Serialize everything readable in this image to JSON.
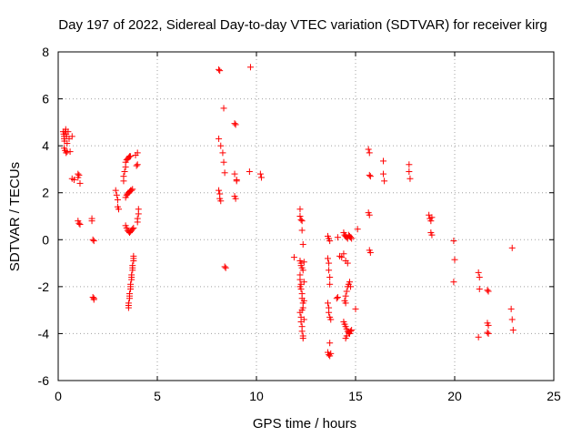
{
  "chart_data": {
    "type": "scatter",
    "title": "Day 197 of 2022, Sidereal Day-to-day VTEC variation (SDTVAR) for receiver kirg",
    "xlabel": "GPS time / hours",
    "ylabel": "SDTVAR / TECUs",
    "xlim": [
      0,
      25
    ],
    "ylim": [
      -6,
      8
    ],
    "xticks": [
      "0",
      "5",
      "10",
      "15",
      "20",
      "25"
    ],
    "yticks": [
      "-6",
      "-4",
      "-2",
      "0",
      "2",
      "4",
      "6",
      "8"
    ],
    "grid": true,
    "marker": "plus",
    "color": "#ff0000",
    "series": [
      {
        "name": "SDTVAR",
        "points": [
          [
            0.25,
            4.6
          ],
          [
            0.28,
            4.5
          ],
          [
            0.3,
            4.4
          ],
          [
            0.3,
            4.3
          ],
          [
            0.32,
            4.2
          ],
          [
            0.35,
            4.6
          ],
          [
            0.38,
            4.7
          ],
          [
            0.4,
            4.5
          ],
          [
            0.42,
            4.4
          ],
          [
            0.45,
            4.1
          ],
          [
            0.3,
            3.9
          ],
          [
            0.35,
            3.8
          ],
          [
            0.4,
            3.7
          ],
          [
            0.45,
            3.75
          ],
          [
            0.5,
            4.6
          ],
          [
            0.55,
            4.3
          ],
          [
            0.6,
            3.75
          ],
          [
            0.7,
            4.4
          ],
          [
            0.7,
            2.6
          ],
          [
            0.8,
            2.55
          ],
          [
            1.0,
            2.8
          ],
          [
            1.0,
            2.65
          ],
          [
            1.05,
            2.75
          ],
          [
            1.1,
            2.4
          ],
          [
            1.0,
            0.8
          ],
          [
            1.05,
            0.7
          ],
          [
            1.1,
            0.65
          ],
          [
            1.7,
            0.9
          ],
          [
            1.7,
            0.8
          ],
          [
            1.75,
            0.0
          ],
          [
            1.8,
            -0.05
          ],
          [
            1.75,
            -2.45
          ],
          [
            1.8,
            -2.5
          ],
          [
            1.8,
            -2.55
          ],
          [
            2.9,
            2.1
          ],
          [
            2.95,
            1.9
          ],
          [
            3.0,
            1.7
          ],
          [
            3.0,
            1.4
          ],
          [
            3.05,
            1.3
          ],
          [
            3.3,
            2.5
          ],
          [
            3.3,
            2.7
          ],
          [
            3.35,
            2.9
          ],
          [
            3.4,
            3.1
          ],
          [
            3.4,
            3.3
          ],
          [
            3.45,
            3.4
          ],
          [
            3.5,
            3.45
          ],
          [
            3.55,
            3.5
          ],
          [
            3.6,
            3.55
          ],
          [
            3.65,
            3.55
          ],
          [
            3.9,
            3.6
          ],
          [
            4.0,
            3.7
          ],
          [
            4.0,
            3.2
          ],
          [
            3.95,
            3.15
          ],
          [
            3.4,
            1.8
          ],
          [
            3.45,
            1.9
          ],
          [
            3.5,
            1.95
          ],
          [
            3.55,
            2.0
          ],
          [
            3.6,
            2.05
          ],
          [
            3.65,
            2.1
          ],
          [
            3.7,
            2.1
          ],
          [
            3.75,
            2.15
          ],
          [
            3.4,
            0.6
          ],
          [
            3.45,
            0.5
          ],
          [
            3.5,
            0.4
          ],
          [
            3.55,
            0.35
          ],
          [
            3.6,
            0.3
          ],
          [
            3.65,
            0.35
          ],
          [
            3.7,
            0.4
          ],
          [
            3.75,
            0.45
          ],
          [
            3.8,
            0.5
          ],
          [
            4.0,
            0.9
          ],
          [
            4.05,
            1.1
          ],
          [
            4.05,
            1.3
          ],
          [
            4.0,
            0.75
          ],
          [
            3.55,
            -2.9
          ],
          [
            3.55,
            -2.7
          ],
          [
            3.6,
            -2.5
          ],
          [
            3.6,
            -2.3
          ],
          [
            3.65,
            -2.1
          ],
          [
            3.65,
            -1.9
          ],
          [
            3.7,
            -1.7
          ],
          [
            3.7,
            -1.5
          ],
          [
            3.75,
            -1.3
          ],
          [
            3.75,
            -1.1
          ],
          [
            3.8,
            -0.9
          ],
          [
            3.8,
            -0.7
          ],
          [
            3.55,
            -2.8
          ],
          [
            3.6,
            -2.4
          ],
          [
            3.65,
            -2.0
          ],
          [
            3.7,
            -1.6
          ],
          [
            3.75,
            -1.2
          ],
          [
            3.8,
            -0.8
          ],
          [
            8.1,
            7.25
          ],
          [
            8.15,
            7.2
          ],
          [
            9.7,
            7.35
          ],
          [
            8.35,
            5.6
          ],
          [
            8.1,
            4.3
          ],
          [
            8.2,
            4.0
          ],
          [
            8.3,
            3.7
          ],
          [
            8.35,
            3.3
          ],
          [
            8.4,
            2.85
          ],
          [
            8.9,
            4.95
          ],
          [
            8.95,
            4.9
          ],
          [
            8.9,
            2.8
          ],
          [
            9.0,
            2.55
          ],
          [
            9.0,
            2.5
          ],
          [
            8.9,
            1.85
          ],
          [
            8.95,
            1.75
          ],
          [
            9.65,
            2.9
          ],
          [
            10.2,
            2.8
          ],
          [
            10.25,
            2.65
          ],
          [
            8.1,
            2.1
          ],
          [
            8.15,
            1.95
          ],
          [
            8.15,
            1.75
          ],
          [
            8.2,
            1.65
          ],
          [
            8.4,
            -1.15
          ],
          [
            8.45,
            -1.2
          ],
          [
            11.9,
            -0.75
          ],
          [
            12.2,
            1.3
          ],
          [
            12.2,
            1.0
          ],
          [
            12.25,
            0.85
          ],
          [
            12.3,
            0.8
          ],
          [
            12.3,
            0.4
          ],
          [
            12.35,
            -0.2
          ],
          [
            12.2,
            -0.9
          ],
          [
            12.25,
            -1.0
          ],
          [
            12.25,
            -1.1
          ],
          [
            12.3,
            -1.2
          ],
          [
            12.35,
            -1.3
          ],
          [
            12.4,
            -0.95
          ],
          [
            12.2,
            -1.5
          ],
          [
            12.2,
            -1.7
          ],
          [
            12.25,
            -1.9
          ],
          [
            12.25,
            -2.1
          ],
          [
            12.3,
            -2.3
          ],
          [
            12.3,
            -2.5
          ],
          [
            12.35,
            -2.7
          ],
          [
            12.35,
            -2.9
          ],
          [
            12.2,
            -3.1
          ],
          [
            12.25,
            -3.3
          ],
          [
            12.25,
            -3.5
          ],
          [
            12.3,
            -3.7
          ],
          [
            12.3,
            -3.9
          ],
          [
            12.35,
            -4.1
          ],
          [
            12.35,
            -4.2
          ],
          [
            12.4,
            -3.4
          ],
          [
            12.4,
            -2.6
          ],
          [
            12.4,
            -1.8
          ],
          [
            12.2,
            -2.0
          ],
          [
            12.3,
            -3.0
          ],
          [
            13.6,
            0.15
          ],
          [
            13.65,
            0.05
          ],
          [
            13.7,
            -0.05
          ],
          [
            13.6,
            -0.8
          ],
          [
            13.65,
            -1.0
          ],
          [
            13.65,
            -1.3
          ],
          [
            13.7,
            -1.6
          ],
          [
            13.7,
            -1.9
          ],
          [
            13.6,
            -2.7
          ],
          [
            13.65,
            -2.9
          ],
          [
            13.65,
            -3.1
          ],
          [
            13.7,
            -3.3
          ],
          [
            13.75,
            -3.4
          ],
          [
            13.7,
            -4.4
          ],
          [
            13.6,
            -4.8
          ],
          [
            13.65,
            -4.9
          ],
          [
            13.7,
            -4.95
          ],
          [
            13.75,
            -4.85
          ],
          [
            14.1,
            0.1
          ],
          [
            14.2,
            -0.7
          ],
          [
            14.3,
            -0.75
          ],
          [
            14.05,
            -2.5
          ],
          [
            14.1,
            -2.45
          ],
          [
            14.4,
            0.3
          ],
          [
            14.45,
            0.2
          ],
          [
            14.5,
            0.15
          ],
          [
            14.55,
            0.1
          ],
          [
            14.6,
            0.05
          ],
          [
            14.65,
            0.2
          ],
          [
            14.7,
            0.15
          ],
          [
            14.75,
            0.1
          ],
          [
            14.8,
            0.05
          ],
          [
            14.4,
            -0.6
          ],
          [
            14.5,
            -0.9
          ],
          [
            14.6,
            -1.0
          ],
          [
            14.45,
            -2.6
          ],
          [
            14.5,
            -2.4
          ],
          [
            14.55,
            -2.2
          ],
          [
            14.6,
            -2.0
          ],
          [
            14.65,
            -1.9
          ],
          [
            14.7,
            -1.8
          ],
          [
            14.75,
            -2.0
          ],
          [
            14.5,
            -2.7
          ],
          [
            14.4,
            -3.5
          ],
          [
            14.45,
            -3.6
          ],
          [
            14.5,
            -3.7
          ],
          [
            14.55,
            -3.8
          ],
          [
            14.6,
            -3.9
          ],
          [
            14.65,
            -3.95
          ],
          [
            14.7,
            -4.0
          ],
          [
            14.75,
            -3.9
          ],
          [
            14.8,
            -3.85
          ],
          [
            14.5,
            -4.2
          ],
          [
            14.55,
            -4.1
          ],
          [
            15.1,
            0.45
          ],
          [
            15.0,
            -2.95
          ],
          [
            15.65,
            3.85
          ],
          [
            15.7,
            3.7
          ],
          [
            15.7,
            2.75
          ],
          [
            15.75,
            2.7
          ],
          [
            15.65,
            1.15
          ],
          [
            15.7,
            1.05
          ],
          [
            15.7,
            -0.45
          ],
          [
            15.75,
            -0.55
          ],
          [
            16.4,
            3.35
          ],
          [
            16.4,
            2.8
          ],
          [
            16.45,
            2.5
          ],
          [
            17.7,
            3.2
          ],
          [
            17.7,
            2.9
          ],
          [
            17.75,
            2.6
          ],
          [
            18.7,
            1.05
          ],
          [
            18.75,
            0.9
          ],
          [
            18.8,
            0.8
          ],
          [
            18.85,
            0.95
          ],
          [
            18.8,
            0.3
          ],
          [
            18.85,
            0.2
          ],
          [
            19.95,
            -0.05
          ],
          [
            20.0,
            -0.85
          ],
          [
            19.95,
            -1.8
          ],
          [
            21.2,
            -1.4
          ],
          [
            21.25,
            -1.6
          ],
          [
            21.25,
            -2.1
          ],
          [
            21.2,
            -4.15
          ],
          [
            21.65,
            -2.15
          ],
          [
            21.7,
            -2.2
          ],
          [
            21.65,
            -3.55
          ],
          [
            21.7,
            -3.65
          ],
          [
            21.65,
            -3.95
          ],
          [
            21.7,
            -4.0
          ],
          [
            22.9,
            -0.35
          ],
          [
            22.85,
            -2.95
          ],
          [
            22.9,
            -3.4
          ],
          [
            22.95,
            -3.85
          ]
        ]
      }
    ]
  }
}
